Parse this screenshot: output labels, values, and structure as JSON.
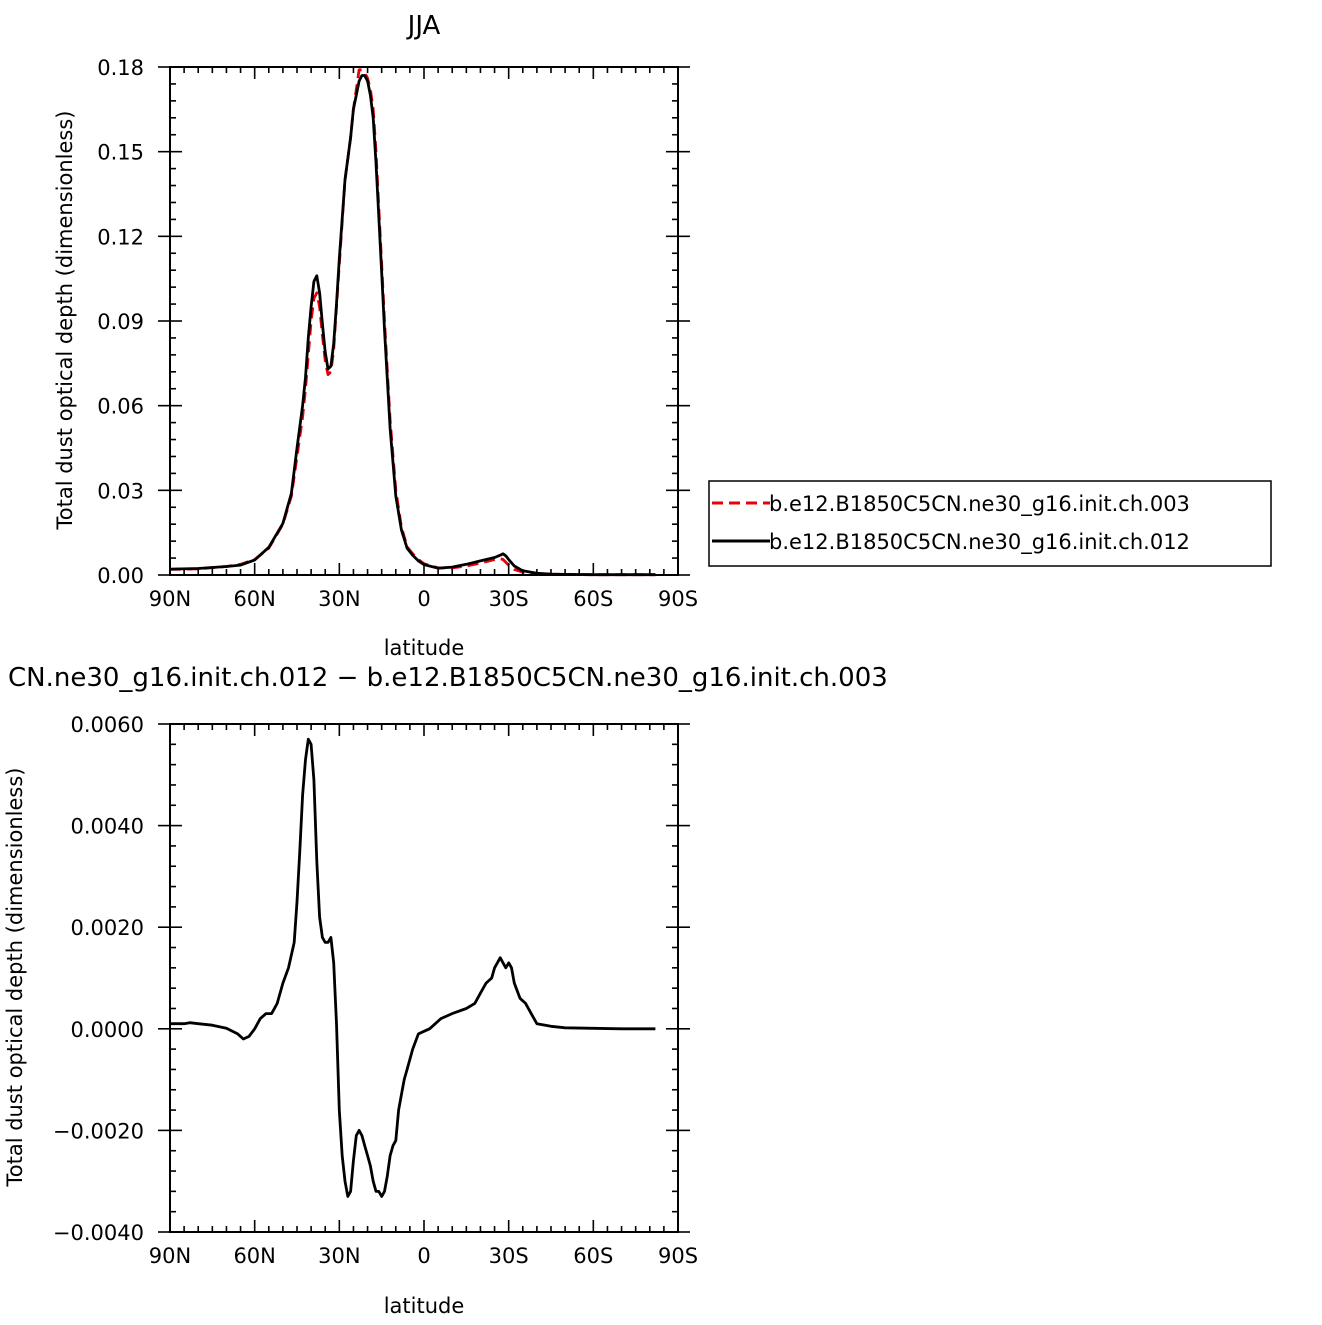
{
  "chart_data": [
    {
      "type": "line",
      "title": "JJA",
      "xlabel": "latitude",
      "ylabel": "Total dust optical depth (dimensionless)",
      "xlim": [
        90,
        -90
      ],
      "ylim": [
        0,
        0.18
      ],
      "x_ticks": [
        90,
        60,
        30,
        0,
        -30,
        -60,
        -90
      ],
      "x_tick_labels": [
        "90N",
        "60N",
        "30N",
        "0",
        "30S",
        "60S",
        "90S"
      ],
      "y_ticks": [
        0,
        0.03,
        0.06,
        0.09,
        0.12,
        0.15,
        0.18
      ],
      "y_tick_labels": [
        "0.00",
        "0.03",
        "0.06",
        "0.09",
        "0.12",
        "0.15",
        "0.18"
      ],
      "legend_position": "right",
      "grid": false,
      "series": [
        {
          "name": "b.e12.B1850C5CN.ne30_g16.init.ch.003",
          "color": "#e8000b",
          "dash": "dashed",
          "x": [
            90,
            80,
            70,
            65,
            60,
            55,
            50,
            47,
            45,
            43,
            42,
            41,
            40,
            39,
            38,
            37,
            36,
            35,
            34,
            33,
            32,
            31,
            30,
            28,
            26,
            25,
            24,
            23,
            22,
            21,
            20,
            19,
            18,
            17,
            16,
            15,
            14,
            12,
            10,
            8,
            6,
            4,
            2,
            0,
            -5,
            -10,
            -15,
            -20,
            -25,
            -27,
            -28,
            -29,
            -30,
            -32,
            -35,
            -40,
            -45,
            -50,
            -60,
            -70,
            -80,
            -82
          ],
          "y": [
            0.002,
            0.0022,
            0.003,
            0.0038,
            0.0055,
            0.0095,
            0.018,
            0.028,
            0.042,
            0.056,
            0.066,
            0.078,
            0.09,
            0.098,
            0.1,
            0.095,
            0.085,
            0.076,
            0.071,
            0.072,
            0.08,
            0.095,
            0.11,
            0.14,
            0.155,
            0.165,
            0.172,
            0.179,
            0.179,
            0.178,
            0.176,
            0.172,
            0.165,
            0.15,
            0.13,
            0.11,
            0.09,
            0.055,
            0.03,
            0.017,
            0.01,
            0.0075,
            0.0055,
            0.004,
            0.0025,
            0.0025,
            0.0032,
            0.0042,
            0.0055,
            0.0058,
            0.0055,
            0.0045,
            0.0035,
            0.002,
            0.001,
            0.0005,
            0.0003,
            0.0002,
            0.0001,
            0.0001,
            0.0001,
            0.0001
          ]
        },
        {
          "name": "b.e12.B1850C5CN.ne30_g16.init.ch.012",
          "color": "#000000",
          "dash": "solid",
          "x": [
            90,
            80,
            70,
            65,
            60,
            55,
            50,
            47,
            45,
            43,
            42,
            41,
            40,
            39,
            38,
            37,
            36,
            35,
            34,
            33,
            32,
            31,
            30,
            28,
            26,
            25,
            24,
            23,
            22,
            21,
            20,
            19,
            18,
            17,
            16,
            15,
            14,
            12,
            10,
            8,
            6,
            4,
            2,
            0,
            -5,
            -10,
            -15,
            -20,
            -25,
            -27,
            -28,
            -29,
            -30,
            -32,
            -35,
            -40,
            -45,
            -50,
            -60,
            -70,
            -80,
            -82
          ],
          "y": [
            0.0021,
            0.0023,
            0.003,
            0.0035,
            0.0053,
            0.0098,
            0.0183,
            0.029,
            0.045,
            0.06,
            0.07,
            0.084,
            0.095,
            0.104,
            0.106,
            0.1,
            0.089,
            0.079,
            0.073,
            0.074,
            0.082,
            0.096,
            0.112,
            0.14,
            0.155,
            0.165,
            0.17,
            0.175,
            0.177,
            0.177,
            0.175,
            0.17,
            0.162,
            0.146,
            0.127,
            0.107,
            0.087,
            0.052,
            0.028,
            0.016,
            0.0095,
            0.007,
            0.005,
            0.0037,
            0.0024,
            0.0028,
            0.0038,
            0.005,
            0.0062,
            0.007,
            0.0075,
            0.0068,
            0.0055,
            0.0032,
            0.0015,
            0.0006,
            0.0003,
            0.0002,
            0.0001,
            0.0001,
            0.0001,
            0.0001
          ]
        }
      ]
    },
    {
      "type": "line",
      "title": "CN.ne30_g16.init.ch.012 − b.e12.B1850C5CN.ne30_g16.init.ch.003",
      "xlabel": "latitude",
      "ylabel": "Total dust optical depth (dimensionless)",
      "xlim": [
        90,
        -90
      ],
      "ylim": [
        -0.004,
        0.006
      ],
      "x_ticks": [
        90,
        60,
        30,
        0,
        -30,
        -60,
        -90
      ],
      "x_tick_labels": [
        "90N",
        "60N",
        "30N",
        "0",
        "30S",
        "60S",
        "90S"
      ],
      "y_ticks": [
        -0.004,
        -0.002,
        0,
        0.002,
        0.004,
        0.006
      ],
      "y_tick_labels": [
        "−0.0040",
        "−0.0020",
        "0.0000",
        "0.0020",
        "0.0040",
        "0.0060"
      ],
      "grid": false,
      "series": [
        {
          "color": "#000000",
          "dash": "solid",
          "x": [
            90,
            85,
            83,
            80,
            75,
            70,
            66,
            64,
            62,
            60,
            58,
            56,
            54,
            52,
            50,
            48,
            46,
            45,
            44,
            43,
            42,
            41,
            40,
            39,
            38,
            37,
            36,
            35,
            34,
            33,
            32,
            31,
            30,
            29,
            28,
            27,
            26,
            25,
            24,
            23,
            22,
            21,
            20,
            19,
            18,
            17,
            16,
            15,
            14,
            13,
            12,
            11,
            10,
            9,
            8,
            7,
            6,
            5,
            4,
            2,
            0,
            -2,
            -4,
            -6,
            -10,
            -15,
            -18,
            -20,
            -22,
            -24,
            -25,
            -26,
            -27,
            -28,
            -29,
            -30,
            -31,
            -32,
            -34,
            -36,
            -38,
            -40,
            -45,
            -50,
            -60,
            -70,
            -80,
            -82
          ],
          "y": [
            0.0001,
            0.0001,
            0.00012,
            0.0001,
            7e-05,
            1e-05,
            -0.0001,
            -0.0002,
            -0.00015,
            0,
            0.0002,
            0.0003,
            0.0003,
            0.0005,
            0.0009,
            0.0012,
            0.0017,
            0.0025,
            0.0035,
            0.0046,
            0.0053,
            0.0057,
            0.0056,
            0.0049,
            0.0033,
            0.0022,
            0.0018,
            0.0017,
            0.0017,
            0.0018,
            0.0013,
            0.0001,
            -0.0016,
            -0.0025,
            -0.003,
            -0.0033,
            -0.0032,
            -0.0026,
            -0.0021,
            -0.002,
            -0.0021,
            -0.0023,
            -0.0025,
            -0.0027,
            -0.003,
            -0.0032,
            -0.0032,
            -0.0033,
            -0.0032,
            -0.0029,
            -0.0025,
            -0.0023,
            -0.0022,
            -0.0016,
            -0.0013,
            -0.001,
            -0.0008,
            -0.0006,
            -0.0004,
            -0.0001,
            -5e-05,
            0,
            0.0001,
            0.0002,
            0.0003,
            0.0004,
            0.0005,
            0.0007,
            0.0009,
            0.001,
            0.0012,
            0.0013,
            0.0014,
            0.0013,
            0.0012,
            0.0013,
            0.0012,
            0.0009,
            0.0006,
            0.0005,
            0.0003,
            0.0001,
            5e-05,
            2e-05,
            1e-05,
            0,
            0,
            0
          ]
        }
      ]
    }
  ]
}
